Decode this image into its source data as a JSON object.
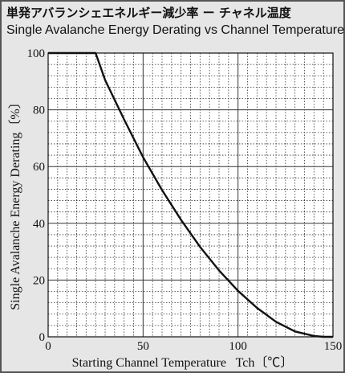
{
  "titles": {
    "japanese": "単発アバランシェエネルギー減少率 ー チャネル温度",
    "english": "Single Avalanche Energy Derating vs Channel Temperature"
  },
  "colors": {
    "background": "#e6e6e6",
    "plot_background": "#ffffff",
    "curve": "#111111",
    "grid": "#333333",
    "frame": "#555555"
  },
  "chart_data": {
    "type": "line",
    "title": "Single Avalanche Energy Derating vs Channel Temperature",
    "xlabel": "Starting Channel Temperature   Tch〔℃〕",
    "ylabel": "Single Avalanche Energy Derating〔%〕",
    "xlim": [
      0,
      150
    ],
    "ylim": [
      0,
      100
    ],
    "xticks": [
      0,
      50,
      100,
      150
    ],
    "yticks": [
      0,
      20,
      40,
      60,
      80,
      100
    ],
    "grid": "dotted minor grid every 5 units (x) and 4 units (y), major every 50 (x) and 20 (y)",
    "series": [
      {
        "x": [
          0,
          25,
          30,
          40,
          50,
          60,
          70,
          80,
          90,
          100,
          110,
          120,
          130,
          140,
          145,
          150
        ],
        "y": [
          100,
          100,
          90.5,
          76.6,
          63.3,
          51.7,
          41.2,
          31.7,
          23.4,
          16.2,
          10.2,
          5.3,
          1.9,
          0.3,
          0,
          0
        ]
      }
    ]
  }
}
